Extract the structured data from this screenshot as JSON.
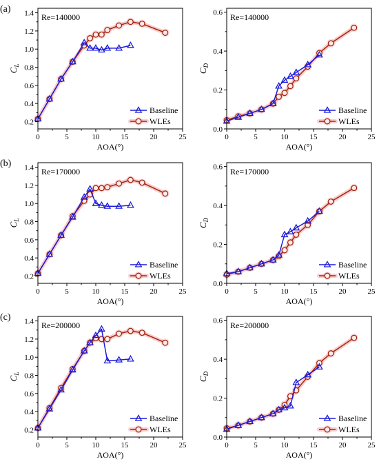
{
  "panel_labels": [
    "(a)",
    "(b)",
    "(c)"
  ],
  "chart_data": [
    {
      "type": "line",
      "annotation": "Re=140000",
      "xlabel": "AOA(°)",
      "ylabel": {
        "main": "C",
        "sub": "L"
      },
      "xlim": [
        0,
        25
      ],
      "ylim": [
        0.12,
        1.45
      ],
      "xticks": [
        "0",
        "5",
        "10",
        "15",
        "20",
        "25"
      ],
      "yticks": [
        "0.2",
        "0.4",
        "0.6",
        "0.8",
        "1.0",
        "1.2",
        "1.4"
      ],
      "grid": false,
      "legend": "bottom-right",
      "series": [
        {
          "name": "Baseline",
          "color": "#1c1cd8",
          "marker": "triangle",
          "x": [
            0,
            2,
            4,
            6,
            8,
            9,
            10,
            11,
            12,
            14,
            16
          ],
          "y": [
            0.23,
            0.45,
            0.67,
            0.86,
            1.07,
            1.01,
            1.01,
            0.99,
            1.01,
            1.01,
            1.04
          ]
        },
        {
          "name": "WLEs",
          "color": "#a3250f",
          "marker": "circle",
          "marker_fill": "#fdeceb",
          "halo_color": "#f29c9c",
          "x": [
            0,
            2,
            4,
            6,
            8,
            9,
            10,
            11,
            12,
            14,
            16,
            18,
            22
          ],
          "y": [
            0.23,
            0.45,
            0.67,
            0.86,
            1.04,
            1.12,
            1.16,
            1.16,
            1.21,
            1.26,
            1.3,
            1.28,
            1.18
          ]
        }
      ]
    },
    {
      "type": "line",
      "annotation": "Re=140000",
      "xlabel": "AOA(°)",
      "ylabel": {
        "main": "C",
        "sub": "D"
      },
      "xlim": [
        0,
        25
      ],
      "ylim": [
        0,
        0.62
      ],
      "xticks": [
        "0",
        "5",
        "10",
        "15",
        "20",
        "25"
      ],
      "yticks": [
        "0.0",
        "0.2",
        "0.4",
        "0.6"
      ],
      "grid": false,
      "legend": "bottom-right",
      "series": [
        {
          "name": "Baseline",
          "color": "#1c1cd8",
          "marker": "triangle",
          "x": [
            0,
            2,
            4,
            6,
            8,
            9,
            10,
            11,
            12,
            14,
            16
          ],
          "y": [
            0.04,
            0.06,
            0.08,
            0.1,
            0.13,
            0.22,
            0.25,
            0.27,
            0.29,
            0.33,
            0.38
          ]
        },
        {
          "name": "WLEs",
          "color": "#a3250f",
          "marker": "circle",
          "marker_fill": "#fdeceb",
          "halo_color": "#f29c9c",
          "x": [
            0,
            2,
            4,
            6,
            8,
            9,
            10,
            11,
            12,
            14,
            16,
            18,
            22
          ],
          "y": [
            0.045,
            0.065,
            0.08,
            0.1,
            0.13,
            0.165,
            0.185,
            0.22,
            0.26,
            0.32,
            0.39,
            0.44,
            0.52
          ]
        }
      ]
    },
    {
      "type": "line",
      "annotation": "Re=170000",
      "xlabel": "AOA(°)",
      "ylabel": {
        "main": "C",
        "sub": "L"
      },
      "xlim": [
        0,
        25
      ],
      "ylim": [
        0.12,
        1.45
      ],
      "xticks": [
        "0",
        "5",
        "10",
        "15",
        "20",
        "25"
      ],
      "yticks": [
        "0.2",
        "0.4",
        "0.6",
        "0.8",
        "1.0",
        "1.2",
        "1.4"
      ],
      "grid": false,
      "legend": "bottom-right",
      "series": [
        {
          "name": "Baseline",
          "color": "#1c1cd8",
          "marker": "triangle",
          "x": [
            0,
            2,
            4,
            6,
            8,
            9,
            10,
            11,
            12,
            14,
            16
          ],
          "y": [
            0.23,
            0.44,
            0.65,
            0.85,
            1.07,
            1.16,
            1.0,
            0.98,
            0.97,
            0.97,
            0.98
          ]
        },
        {
          "name": "WLEs",
          "color": "#a3250f",
          "marker": "circle",
          "marker_fill": "#fdeceb",
          "halo_color": "#f29c9c",
          "x": [
            0,
            2,
            4,
            6,
            8,
            9,
            10,
            11,
            12,
            14,
            16,
            18,
            22
          ],
          "y": [
            0.23,
            0.44,
            0.65,
            0.86,
            1.03,
            1.1,
            1.17,
            1.17,
            1.18,
            1.22,
            1.26,
            1.23,
            1.11
          ]
        }
      ]
    },
    {
      "type": "line",
      "annotation": "Re=170000",
      "xlabel": "AOA(°)",
      "ylabel": {
        "main": "C",
        "sub": "D"
      },
      "xlim": [
        0,
        25
      ],
      "ylim": [
        0,
        0.62
      ],
      "xticks": [
        "0",
        "5",
        "10",
        "15",
        "20",
        "25"
      ],
      "yticks": [
        "0.0",
        "0.2",
        "0.4",
        "0.6"
      ],
      "grid": false,
      "legend": "bottom-right",
      "series": [
        {
          "name": "Baseline",
          "color": "#1c1cd8",
          "marker": "triangle",
          "x": [
            0,
            2,
            4,
            6,
            8,
            9,
            10,
            11,
            12,
            14,
            16
          ],
          "y": [
            0.05,
            0.06,
            0.08,
            0.1,
            0.12,
            0.145,
            0.25,
            0.265,
            0.285,
            0.32,
            0.37
          ]
        },
        {
          "name": "WLEs",
          "color": "#a3250f",
          "marker": "circle",
          "marker_fill": "#fdeceb",
          "halo_color": "#f29c9c",
          "x": [
            0,
            2,
            4,
            6,
            8,
            9,
            10,
            11,
            12,
            14,
            16,
            18,
            22
          ],
          "y": [
            0.045,
            0.06,
            0.08,
            0.1,
            0.12,
            0.14,
            0.17,
            0.21,
            0.25,
            0.3,
            0.37,
            0.42,
            0.49
          ]
        }
      ]
    },
    {
      "type": "line",
      "annotation": "Re=200000",
      "xlabel": "AOA(°)",
      "ylabel": {
        "main": "C",
        "sub": "L"
      },
      "xlim": [
        0,
        25
      ],
      "ylim": [
        0.12,
        1.45
      ],
      "xticks": [
        "0",
        "5",
        "10",
        "15",
        "20",
        "25"
      ],
      "yticks": [
        "0.2",
        "0.4",
        "0.6",
        "0.8",
        "1.0",
        "1.2",
        "1.4"
      ],
      "grid": false,
      "legend": "bottom-right",
      "series": [
        {
          "name": "Baseline",
          "color": "#1c1cd8",
          "marker": "triangle",
          "x": [
            0,
            2,
            4,
            6,
            8,
            9,
            10,
            11,
            12,
            14,
            16
          ],
          "y": [
            0.22,
            0.43,
            0.64,
            0.86,
            1.07,
            1.16,
            1.24,
            1.31,
            0.96,
            0.97,
            0.98
          ]
        },
        {
          "name": "WLEs",
          "color": "#a3250f",
          "marker": "circle",
          "marker_fill": "#fdeceb",
          "halo_color": "#f29c9c",
          "x": [
            0,
            2,
            4,
            6,
            8,
            9,
            10,
            11,
            12,
            14,
            16,
            18,
            22
          ],
          "y": [
            0.22,
            0.44,
            0.66,
            0.87,
            1.07,
            1.16,
            1.21,
            1.2,
            1.2,
            1.26,
            1.29,
            1.27,
            1.16
          ]
        }
      ]
    },
    {
      "type": "line",
      "annotation": "Re=200000",
      "xlabel": "AOA(°)",
      "ylabel": {
        "main": "C",
        "sub": "D"
      },
      "xlim": [
        0,
        25
      ],
      "ylim": [
        0,
        0.62
      ],
      "xticks": [
        "0",
        "5",
        "10",
        "15",
        "20",
        "25"
      ],
      "yticks": [
        "0.0",
        "0.2",
        "0.4",
        "0.6"
      ],
      "grid": false,
      "legend": "bottom-right",
      "series": [
        {
          "name": "Baseline",
          "color": "#1c1cd8",
          "marker": "triangle",
          "x": [
            0,
            2,
            4,
            6,
            8,
            9,
            10,
            11,
            12,
            14,
            16
          ],
          "y": [
            0.04,
            0.06,
            0.08,
            0.1,
            0.12,
            0.14,
            0.15,
            0.16,
            0.28,
            0.32,
            0.36
          ]
        },
        {
          "name": "WLEs",
          "color": "#a3250f",
          "marker": "circle",
          "marker_fill": "#fdeceb",
          "halo_color": "#f29c9c",
          "x": [
            0,
            2,
            4,
            6,
            8,
            9,
            10,
            11,
            12,
            14,
            16,
            18,
            22
          ],
          "y": [
            0.045,
            0.06,
            0.08,
            0.1,
            0.12,
            0.14,
            0.165,
            0.21,
            0.24,
            0.31,
            0.38,
            0.43,
            0.51
          ]
        }
      ]
    }
  ]
}
